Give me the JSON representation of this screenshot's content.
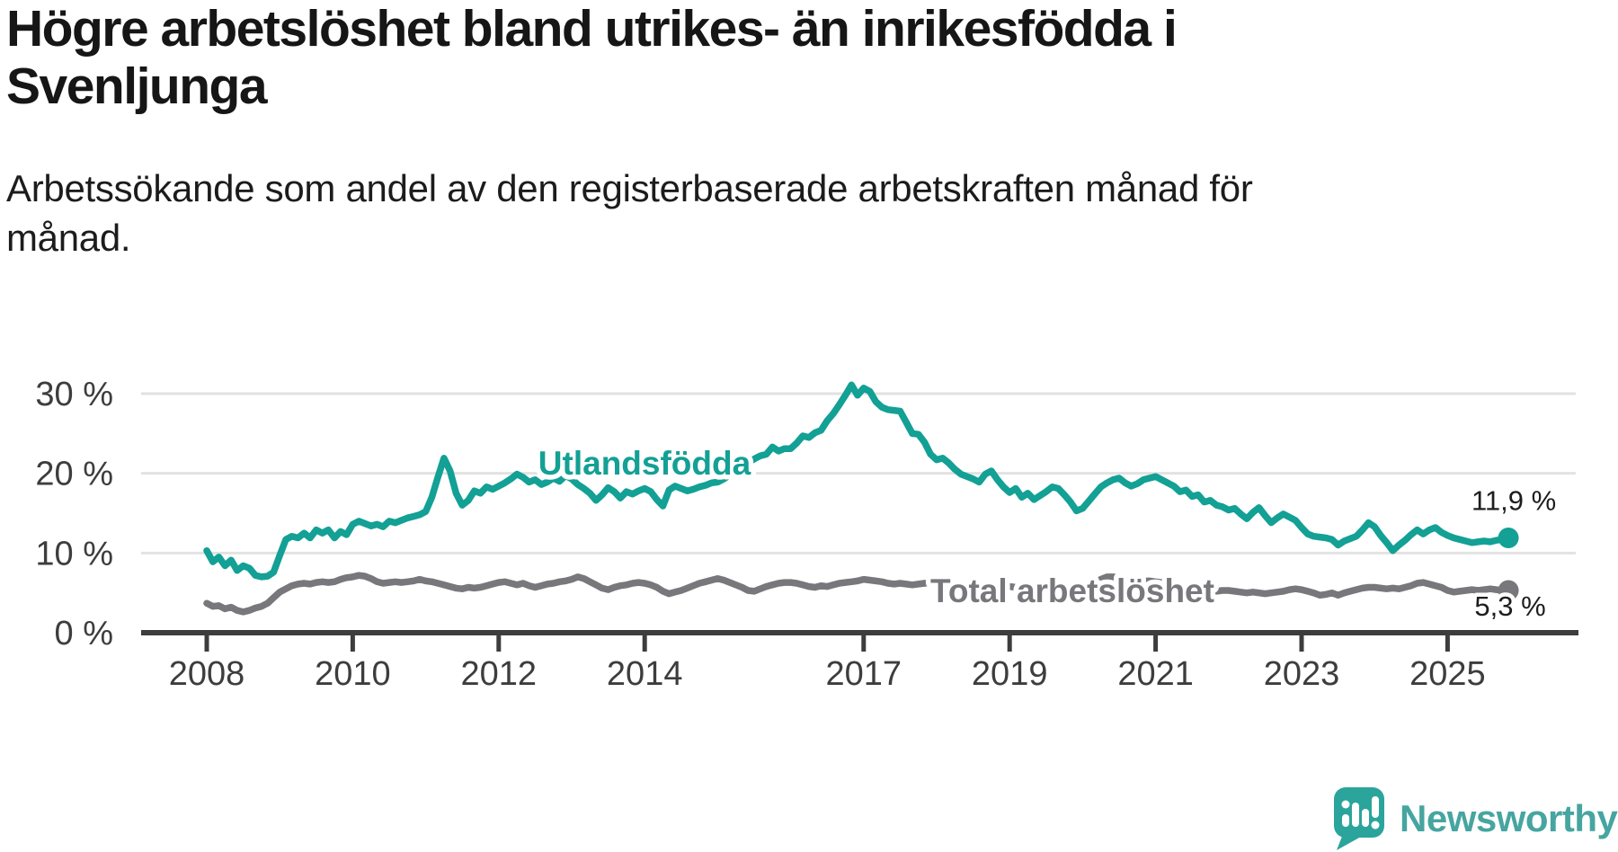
{
  "title": "Högre arbetslöshet bland utrikes- än inrikesfödda i\nSvenljunga",
  "subtitle": "Arbetssökande som andel av den registerbaserade arbetskraften månad för\nmånad.",
  "colors": {
    "background": "#ffffff",
    "title_text": "#161616",
    "axis": "#3d3d3d",
    "grid": "#e2e2e2",
    "foreign_born": "#13a095",
    "total": "#77777c",
    "value_label": "#1d1d1d",
    "logo_icon": "#2ba49b",
    "logo_text": "#46a5a0"
  },
  "chart_data": {
    "type": "line",
    "title": "Högre arbetslöshet bland utrikes- än inrikesfödda i Svenljunga",
    "subtitle": "Arbetssökande som andel av den registerbaserade arbetskraften månad för månad.",
    "xlabel": "",
    "ylabel": "",
    "grid": "horizontal",
    "legend_position": "inline-labels",
    "x_unit": "month",
    "x_start_year": 2008,
    "x_end_label": "2025-11",
    "ylim": [
      0,
      33
    ],
    "xlim_years": [
      2007.1,
      2026.8
    ],
    "x_ticks": [
      {
        "label": "2008",
        "year": 2008
      },
      {
        "label": "2010",
        "year": 2010
      },
      {
        "label": "2012",
        "year": 2012
      },
      {
        "label": "2014",
        "year": 2014
      },
      {
        "label": "2017",
        "year": 2017
      },
      {
        "label": "2019",
        "year": 2019
      },
      {
        "label": "2021",
        "year": 2021
      },
      {
        "label": "2023",
        "year": 2023
      },
      {
        "label": "2025",
        "year": 2025
      }
    ],
    "y_ticks": [
      {
        "label": "30 %",
        "value": 30
      },
      {
        "label": "20 %",
        "value": 20
      },
      {
        "label": "10 %",
        "value": 10
      },
      {
        "label": "0 %",
        "value": 0
      }
    ],
    "series": [
      {
        "name": "Utlandsfödda",
        "color": "#13a095",
        "end_label": "11,9 %",
        "last_value": 11.9,
        "values": [
          10.3,
          8.9,
          9.5,
          8.4,
          9.1,
          7.8,
          8.4,
          8.1,
          7.2,
          7.0,
          7.1,
          7.6,
          9.7,
          11.7,
          12.1,
          11.9,
          12.5,
          11.9,
          12.9,
          12.5,
          12.9,
          11.9,
          12.7,
          12.3,
          13.6,
          14.0,
          13.7,
          13.4,
          13.6,
          13.3,
          14.0,
          13.8,
          14.1,
          14.4,
          14.6,
          14.8,
          15.2,
          17.0,
          19.5,
          21.9,
          20.3,
          17.5,
          16.0,
          16.6,
          17.8,
          17.5,
          18.3,
          18.0,
          18.4,
          18.8,
          19.3,
          19.9,
          19.5,
          18.9,
          19.2,
          18.6,
          18.9,
          19.4,
          19.0,
          19.7,
          19.3,
          18.6,
          18.1,
          17.5,
          16.6,
          17.3,
          18.2,
          17.7,
          16.9,
          17.7,
          17.4,
          17.8,
          18.1,
          17.7,
          16.7,
          15.9,
          17.9,
          18.4,
          18.1,
          17.8,
          18.0,
          18.3,
          18.5,
          18.8,
          18.9,
          19.3,
          19.8,
          20.3,
          20.8,
          21.3,
          21.8,
          22.2,
          22.4,
          23.3,
          22.8,
          23.1,
          23.1,
          23.8,
          24.7,
          24.5,
          25.1,
          25.4,
          26.6,
          27.5,
          28.6,
          29.8,
          31.1,
          29.8,
          30.7,
          30.3,
          29.0,
          28.3,
          28.0,
          27.9,
          27.8,
          26.4,
          25.0,
          24.9,
          23.9,
          22.4,
          21.7,
          21.9,
          21.3,
          20.5,
          19.9,
          19.6,
          19.3,
          18.9,
          19.9,
          20.3,
          19.2,
          18.3,
          17.6,
          18.1,
          17.0,
          17.5,
          16.7,
          17.2,
          17.7,
          18.3,
          18.1,
          17.3,
          16.4,
          15.3,
          15.6,
          16.5,
          17.4,
          18.3,
          18.8,
          19.2,
          19.4,
          18.8,
          18.4,
          18.7,
          19.2,
          19.4,
          19.6,
          19.2,
          18.8,
          18.4,
          17.7,
          17.9,
          17.1,
          17.3,
          16.4,
          16.6,
          16.0,
          15.8,
          15.4,
          15.6,
          14.9,
          14.3,
          15.1,
          15.7,
          14.7,
          13.8,
          14.4,
          14.9,
          14.5,
          14.1,
          13.2,
          12.4,
          12.1,
          12.0,
          11.9,
          11.7,
          11.0,
          11.5,
          11.8,
          12.1,
          12.9,
          13.8,
          13.3,
          12.2,
          11.3,
          10.3,
          11.0,
          11.6,
          12.3,
          12.9,
          12.4,
          12.9,
          13.2,
          12.6,
          12.2,
          11.9,
          11.7,
          11.5,
          11.3,
          11.4,
          11.5,
          11.4,
          11.6,
          11.7,
          11.9
        ]
      },
      {
        "name": "Total arbetslöshet",
        "color": "#77777c",
        "end_label": "5,3 %",
        "last_value": 5.3,
        "values": [
          3.7,
          3.3,
          3.4,
          3.0,
          3.2,
          2.8,
          2.6,
          2.8,
          3.1,
          3.3,
          3.7,
          4.4,
          5.1,
          5.5,
          5.9,
          6.1,
          6.2,
          6.1,
          6.3,
          6.4,
          6.3,
          6.4,
          6.7,
          6.9,
          7.0,
          7.2,
          7.1,
          6.8,
          6.4,
          6.2,
          6.3,
          6.4,
          6.3,
          6.4,
          6.5,
          6.7,
          6.5,
          6.4,
          6.2,
          6.0,
          5.8,
          5.6,
          5.5,
          5.7,
          5.6,
          5.7,
          5.9,
          6.1,
          6.3,
          6.4,
          6.2,
          6.0,
          6.2,
          5.9,
          5.7,
          5.9,
          6.1,
          6.2,
          6.4,
          6.5,
          6.7,
          7.0,
          6.8,
          6.4,
          6.0,
          5.6,
          5.4,
          5.7,
          5.9,
          6.0,
          6.2,
          6.3,
          6.2,
          6.0,
          5.7,
          5.2,
          4.9,
          5.1,
          5.3,
          5.6,
          5.9,
          6.2,
          6.4,
          6.6,
          6.8,
          6.6,
          6.3,
          6.0,
          5.7,
          5.3,
          5.2,
          5.5,
          5.8,
          6.0,
          6.2,
          6.3,
          6.3,
          6.2,
          6.0,
          5.8,
          5.7,
          5.9,
          5.8,
          6.0,
          6.2,
          6.3,
          6.4,
          6.5,
          6.7,
          6.6,
          6.5,
          6.4,
          6.2,
          6.1,
          6.2,
          6.1,
          6.0,
          6.1,
          6.2,
          6.3,
          6.2,
          6.1,
          6.0,
          5.9,
          5.8,
          5.7,
          5.6,
          5.7,
          5.6,
          5.5,
          5.6,
          5.7,
          5.8,
          5.7,
          5.6,
          5.5,
          5.4,
          5.5,
          5.6,
          5.7,
          5.6,
          5.5,
          5.4,
          5.5,
          5.7,
          5.9,
          6.3,
          6.7,
          7.0,
          7.0,
          6.9,
          6.8,
          6.7,
          6.6,
          6.5,
          6.5,
          6.4,
          6.3,
          6.2,
          6.0,
          5.9,
          5.8,
          5.6,
          5.5,
          5.4,
          5.3,
          5.2,
          5.3,
          5.3,
          5.2,
          5.1,
          5.0,
          5.1,
          5.0,
          4.9,
          5.0,
          5.1,
          5.2,
          5.4,
          5.5,
          5.4,
          5.2,
          5.0,
          4.7,
          4.8,
          5.0,
          4.7,
          5.0,
          5.2,
          5.4,
          5.6,
          5.7,
          5.7,
          5.6,
          5.5,
          5.6,
          5.5,
          5.7,
          5.9,
          6.2,
          6.3,
          6.1,
          5.9,
          5.7,
          5.3,
          5.1,
          5.2,
          5.3,
          5.4,
          5.3,
          5.4,
          5.5,
          5.4,
          5.3,
          5.3
        ]
      }
    ]
  },
  "logo": {
    "text": "Newsworthy",
    "icon": "speech-bubble-bar-chart-exclamation"
  }
}
